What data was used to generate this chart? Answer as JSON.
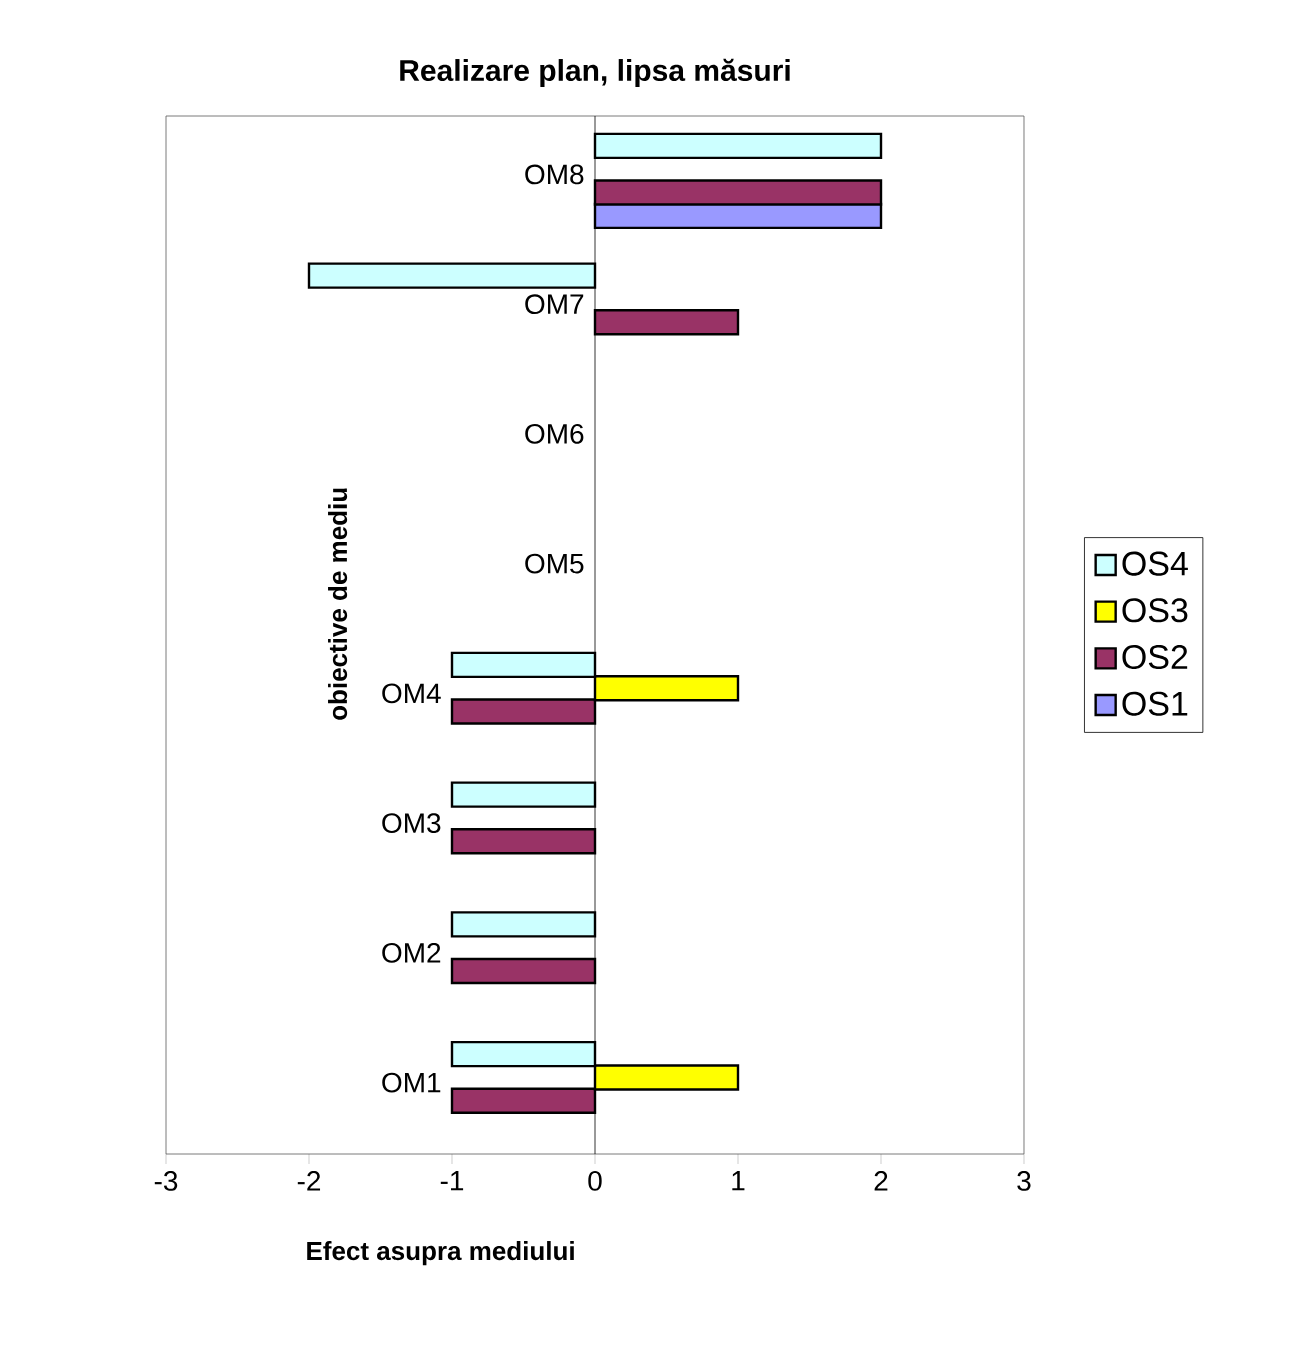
{
  "chart_data": {
    "type": "bar",
    "orientation": "horizontal",
    "title": "Realizare plan, lipsa măsuri",
    "xlabel": "Efect asupra mediului",
    "ylabel": "obiective de mediu",
    "categories": [
      "OM8",
      "OM7",
      "OM6",
      "OM5",
      "OM4",
      "OM3",
      "OM2",
      "OM1"
    ],
    "series": [
      {
        "name": "OS1",
        "color": "#9999ff",
        "values": [
          2,
          null,
          null,
          null,
          null,
          null,
          null,
          null
        ]
      },
      {
        "name": "OS2",
        "color": "#993366",
        "values": [
          2,
          1,
          null,
          null,
          -1,
          -1,
          -1,
          -1
        ]
      },
      {
        "name": "OS3",
        "color": "#ffff00",
        "values": [
          null,
          null,
          null,
          null,
          1,
          null,
          null,
          1
        ]
      },
      {
        "name": "OS4",
        "color": "#ccffff",
        "values": [
          2,
          -2,
          null,
          null,
          -1,
          -1,
          -1,
          -1
        ]
      }
    ],
    "xlim": [
      -3,
      3
    ],
    "xticks": [
      -3,
      -2,
      -1,
      0,
      1,
      2,
      3
    ],
    "legend": "right"
  }
}
